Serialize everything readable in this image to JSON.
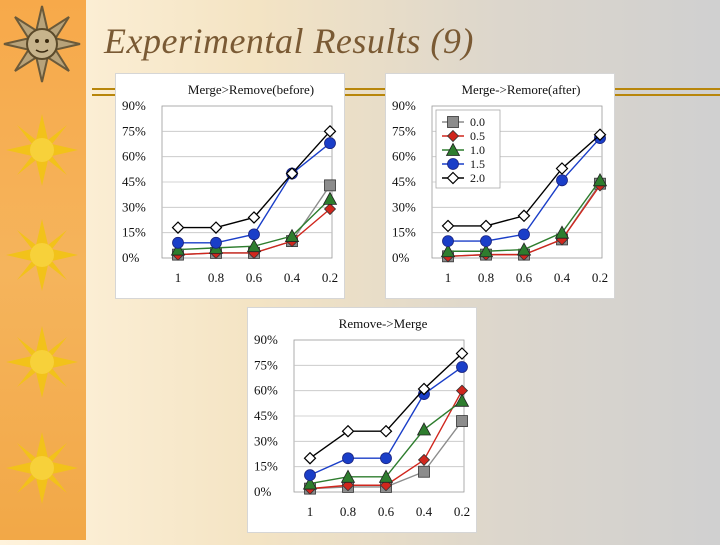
{
  "slide": {
    "title": "Experimental Results (9)"
  },
  "colors": {
    "sidebar": "#f5b04f",
    "sun": "#f2c21a",
    "title": "#7a5a34",
    "rule": "#b8860b"
  },
  "legend": {
    "entries": [
      "0.0",
      "0.5",
      "1.0",
      "1.5",
      "2.0"
    ]
  },
  "chart_data": [
    {
      "type": "line",
      "title": "Merge>Remove(before)",
      "categories": [
        "1",
        "0.8",
        "0.6",
        "0.4",
        "0.2"
      ],
      "yticks": [
        "0%",
        "15%",
        "30%",
        "45%",
        "60%",
        "75%",
        "90%"
      ],
      "ylim": [
        0,
        90
      ],
      "grid": true,
      "legend": "none",
      "series": [
        {
          "name": "0.0",
          "color": "#8c8c8c",
          "marker": "square",
          "values": [
            2,
            3,
            3,
            10,
            43
          ]
        },
        {
          "name": "0.5",
          "color": "#d0261d",
          "marker": "diamond",
          "values": [
            2,
            3,
            3,
            10,
            29
          ]
        },
        {
          "name": "1.0",
          "color": "#2e7d2e",
          "marker": "triangle",
          "values": [
            5,
            6,
            7,
            13,
            35
          ]
        },
        {
          "name": "1.5",
          "color": "#1a3ec8",
          "marker": "circle",
          "values": [
            9,
            9,
            14,
            50,
            68
          ]
        },
        {
          "name": "2.0",
          "color": "#000000",
          "marker": "diamond-open",
          "values": [
            18,
            18,
            24,
            50,
            75
          ]
        }
      ]
    },
    {
      "type": "line",
      "title": "Merge->Remore(after)",
      "categories": [
        "1",
        "0.8",
        "0.6",
        "0.4",
        "0.2"
      ],
      "yticks": [
        "0%",
        "15%",
        "30%",
        "45%",
        "60%",
        "75%",
        "90%"
      ],
      "ylim": [
        0,
        90
      ],
      "grid": true,
      "legend": "top-left",
      "series": [
        {
          "name": "0.0",
          "color": "#8c8c8c",
          "marker": "square",
          "values": [
            1,
            2,
            2,
            11,
            44
          ]
        },
        {
          "name": "0.5",
          "color": "#d0261d",
          "marker": "diamond",
          "values": [
            1,
            2,
            2,
            11,
            43
          ]
        },
        {
          "name": "1.0",
          "color": "#2e7d2e",
          "marker": "triangle",
          "values": [
            4,
            4,
            5,
            15,
            46
          ]
        },
        {
          "name": "1.5",
          "color": "#1a3ec8",
          "marker": "circle",
          "values": [
            10,
            10,
            14,
            46,
            71
          ]
        },
        {
          "name": "2.0",
          "color": "#000000",
          "marker": "diamond-open",
          "values": [
            19,
            19,
            25,
            53,
            73
          ]
        }
      ]
    },
    {
      "type": "line",
      "title": "Remove->Merge",
      "categories": [
        "1",
        "0.8",
        "0.6",
        "0.4",
        "0.2"
      ],
      "yticks": [
        "0%",
        "15%",
        "30%",
        "45%",
        "60%",
        "75%",
        "90%"
      ],
      "ylim": [
        0,
        90
      ],
      "grid": true,
      "legend": "none",
      "series": [
        {
          "name": "0.0",
          "color": "#8c8c8c",
          "marker": "square",
          "values": [
            2,
            3,
            3,
            12,
            42
          ]
        },
        {
          "name": "0.5",
          "color": "#d0261d",
          "marker": "diamond",
          "values": [
            2,
            4,
            4,
            19,
            60
          ]
        },
        {
          "name": "1.0",
          "color": "#2e7d2e",
          "marker": "triangle",
          "values": [
            5,
            9,
            9,
            37,
            54
          ]
        },
        {
          "name": "1.5",
          "color": "#1a3ec8",
          "marker": "circle",
          "values": [
            10,
            20,
            20,
            58,
            74
          ]
        },
        {
          "name": "2.0",
          "color": "#000000",
          "marker": "diamond-open",
          "values": [
            20,
            36,
            36,
            61,
            82
          ]
        }
      ]
    }
  ]
}
